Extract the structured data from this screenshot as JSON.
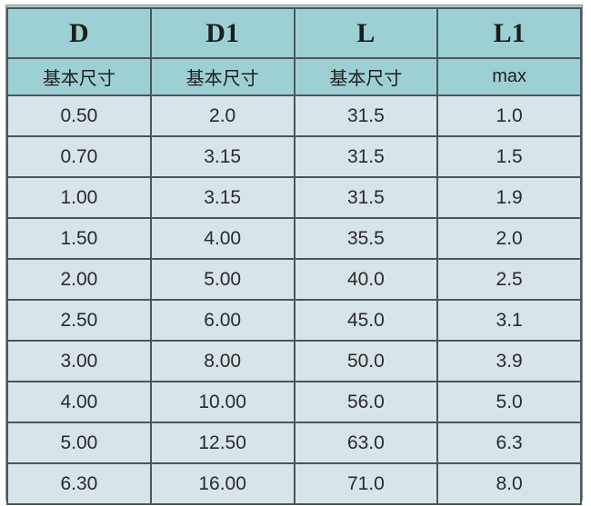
{
  "colors": {
    "header_bg": "#9dd0d4",
    "row_bg": "#d7e4e9",
    "grid_line": "#4e5559",
    "text": "#2b2b2b",
    "page_bg": "#ffffff"
  },
  "table": {
    "columns": [
      {
        "label": "D",
        "sub": "基本尺寸"
      },
      {
        "label": "D1",
        "sub": "基本尺寸"
      },
      {
        "label": "L",
        "sub": "基本尺寸"
      },
      {
        "label": "L1",
        "sub": "max"
      }
    ],
    "rows": [
      [
        "0.50",
        "2.0",
        "31.5",
        "1.0"
      ],
      [
        "0.70",
        "3.15",
        "31.5",
        "1.5"
      ],
      [
        "1.00",
        "3.15",
        "31.5",
        "1.9"
      ],
      [
        "1.50",
        "4.00",
        "35.5",
        "2.0"
      ],
      [
        "2.00",
        "5.00",
        "40.0",
        "2.5"
      ],
      [
        "2.50",
        "6.00",
        "45.0",
        "3.1"
      ],
      [
        "3.00",
        "8.00",
        "50.0",
        "3.9"
      ],
      [
        "4.00",
        "10.00",
        "56.0",
        "5.0"
      ],
      [
        "5.00",
        "12.50",
        "63.0",
        "6.3"
      ],
      [
        "6.30",
        "16.00",
        "71.0",
        "8.0"
      ]
    ]
  },
  "chart_data": {
    "type": "table",
    "title": "",
    "columns": [
      "D",
      "D1",
      "L",
      "L1"
    ],
    "subheaders": [
      "基本尺寸",
      "基本尺寸",
      "基本尺寸",
      "max"
    ],
    "rows": [
      [
        "0.50",
        "2.0",
        "31.5",
        "1.0"
      ],
      [
        "0.70",
        "3.15",
        "31.5",
        "1.5"
      ],
      [
        "1.00",
        "3.15",
        "31.5",
        "1.9"
      ],
      [
        "1.50",
        "4.00",
        "35.5",
        "2.0"
      ],
      [
        "2.00",
        "5.00",
        "40.0",
        "2.5"
      ],
      [
        "2.50",
        "6.00",
        "45.0",
        "3.1"
      ],
      [
        "3.00",
        "8.00",
        "50.0",
        "3.9"
      ],
      [
        "4.00",
        "10.00",
        "56.0",
        "5.0"
      ],
      [
        "5.00",
        "12.50",
        "63.0",
        "6.3"
      ],
      [
        "6.30",
        "16.00",
        "71.0",
        "8.0"
      ]
    ],
    "layout": {
      "header_rows": 2,
      "data_rows": 10,
      "columns_count": 4,
      "grid": true
    }
  }
}
